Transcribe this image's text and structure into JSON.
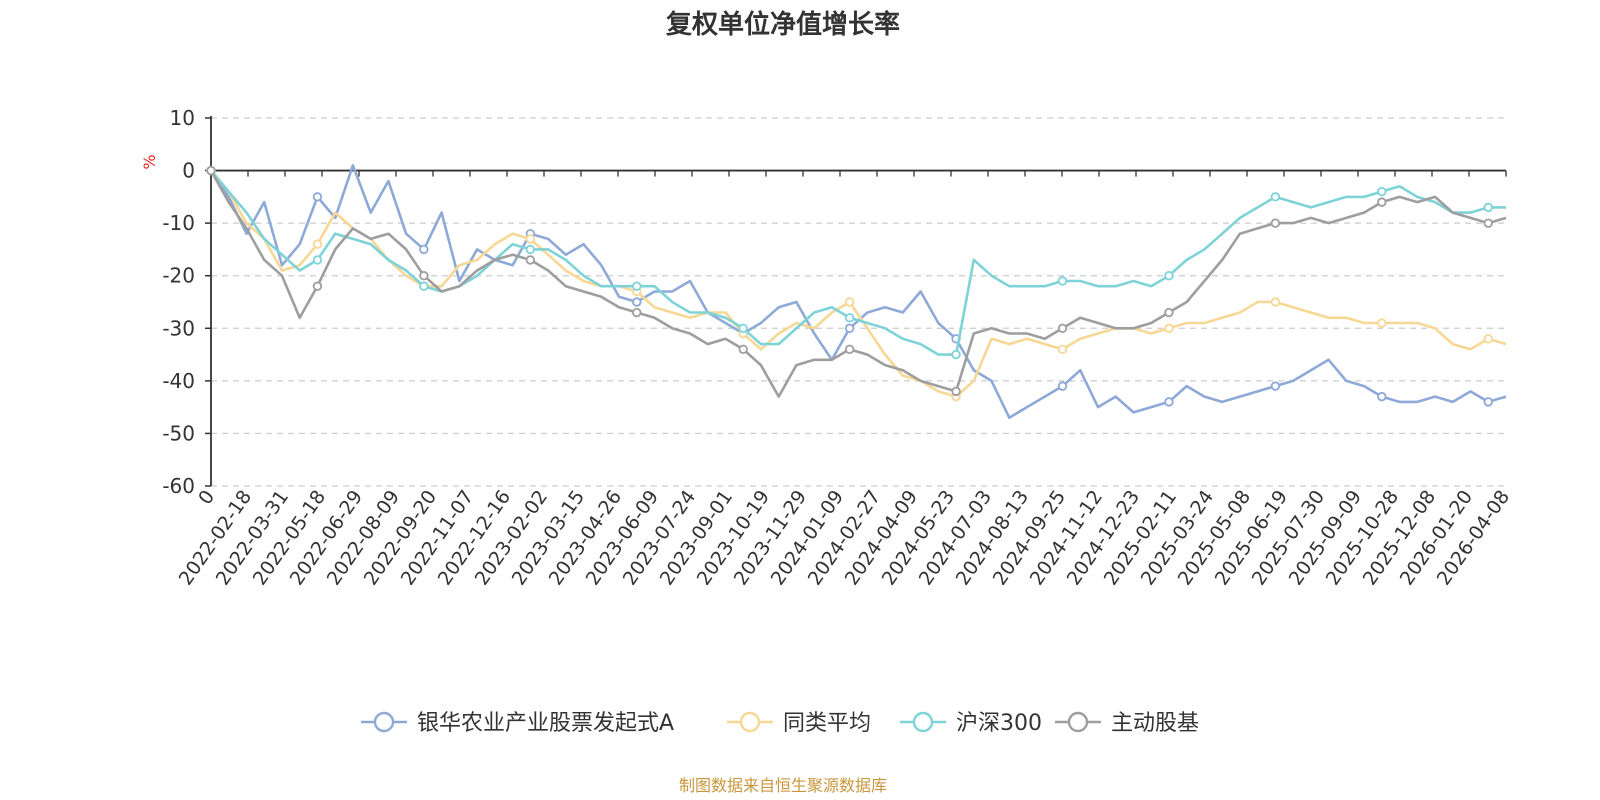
{
  "chart_data": {
    "type": "line",
    "title": "复权单位净值增长率",
    "ylabel": "%",
    "xlabel": "",
    "ylim": [
      -60,
      10
    ],
    "yticks": [
      10,
      0,
      -10,
      -20,
      -30,
      -40,
      -50,
      -60
    ],
    "grid": true,
    "legend_position": "bottom",
    "source": "制图数据来自恒生聚源数据库",
    "x_ticks": [
      "0",
      "2022-02-18",
      "2022-03-31",
      "2022-05-18",
      "2022-06-29",
      "2022-08-09",
      "2022-09-20",
      "2022-11-07",
      "2022-12-16",
      "2023-02-02",
      "2023-03-15",
      "2023-04-26",
      "2023-06-09",
      "2023-07-24",
      "2023-09-01",
      "2023-10-19",
      "2023-11-29",
      "2024-01-09",
      "2024-02-27",
      "2024-04-09",
      "2024-05-23",
      "2024-07-03",
      "2024-08-13",
      "2024-09-25",
      "2024-11-12",
      "2024-12-23",
      "2025-02-11",
      "2025-03-24",
      "2025-05-08",
      "2025-06-19",
      "2025-07-30",
      "2025-09-09",
      "2025-10-28",
      "2025-12-08",
      "2026-01-20",
      "2026-04-08"
    ],
    "series": [
      {
        "name": "银华农业产业股票发起式A",
        "color": "#8ea9d8",
        "values": [
          0,
          -5,
          -12,
          -6,
          -18,
          -14,
          -5,
          -9,
          1,
          -8,
          -2,
          -12,
          -15,
          -8,
          -21,
          -15,
          -17,
          -18,
          -12,
          -13,
          -16,
          -14,
          -18,
          -24,
          -25,
          -23,
          -23,
          -21,
          -27,
          -29,
          -31,
          -29,
          -26,
          -25,
          -31,
          -36,
          -30,
          -27,
          -26,
          -27,
          -23,
          -29,
          -32,
          -38,
          -40,
          -47,
          -45,
          -43,
          -41,
          -38,
          -45,
          -43,
          -46,
          -45,
          -44,
          -41,
          -43,
          -44,
          -43,
          -42,
          -41,
          -40,
          -38,
          -36,
          -40,
          -41,
          -43,
          -44,
          -44,
          -43,
          -44,
          -42,
          -44,
          -43
        ]
      },
      {
        "name": "同类平均",
        "color": "#f7d794",
        "values": [
          0,
          -4,
          -10,
          -13,
          -19,
          -18,
          -14,
          -8,
          -11,
          -13,
          -17,
          -20,
          -22,
          -22,
          -18,
          -17,
          -14,
          -12,
          -13,
          -16,
          -19,
          -21,
          -22,
          -22,
          -23,
          -26,
          -27,
          -28,
          -27,
          -27,
          -31,
          -34,
          -31,
          -29,
          -30,
          -27,
          -25,
          -30,
          -35,
          -39,
          -40,
          -42,
          -43,
          -40,
          -32,
          -33,
          -32,
          -33,
          -34,
          -32,
          -31,
          -30,
          -30,
          -31,
          -30,
          -29,
          -29,
          -28,
          -27,
          -25,
          -25,
          -26,
          -27,
          -28,
          -28,
          -29,
          -29,
          -29,
          -29,
          -30,
          -33,
          -34,
          -32,
          -33
        ]
      },
      {
        "name": "沪深300",
        "color": "#7ed3d8",
        "values": [
          0,
          -4,
          -8,
          -13,
          -16,
          -19,
          -17,
          -12,
          -13,
          -14,
          -17,
          -19,
          -22,
          -23,
          -22,
          -20,
          -17,
          -14,
          -15,
          -15,
          -17,
          -20,
          -22,
          -22,
          -22,
          -22,
          -25,
          -27,
          -27,
          -28,
          -30,
          -33,
          -33,
          -30,
          -27,
          -26,
          -28,
          -29,
          -30,
          -32,
          -33,
          -35,
          -35,
          -17,
          -20,
          -22,
          -22,
          -22,
          -21,
          -21,
          -22,
          -22,
          -21,
          -22,
          -20,
          -17,
          -15,
          -12,
          -9,
          -7,
          -5,
          -6,
          -7,
          -6,
          -5,
          -5,
          -4,
          -3,
          -5,
          -6,
          -8,
          -8,
          -7,
          -7
        ]
      },
      {
        "name": "主动股基",
        "color": "#9e9e9e",
        "values": [
          0,
          -6,
          -11,
          -17,
          -20,
          -28,
          -22,
          -15,
          -11,
          -13,
          -12,
          -15,
          -20,
          -23,
          -22,
          -19,
          -17,
          -16,
          -17,
          -19,
          -22,
          -23,
          -24,
          -26,
          -27,
          -28,
          -30,
          -31,
          -33,
          -32,
          -34,
          -37,
          -43,
          -37,
          -36,
          -36,
          -34,
          -35,
          -37,
          -38,
          -40,
          -41,
          -42,
          -31,
          -30,
          -31,
          -31,
          -32,
          -30,
          -28,
          -29,
          -30,
          -30,
          -29,
          -27,
          -25,
          -21,
          -17,
          -12,
          -11,
          -10,
          -10,
          -9,
          -10,
          -9,
          -8,
          -6,
          -5,
          -6,
          -5,
          -8,
          -9,
          -10,
          -9
        ]
      }
    ]
  }
}
